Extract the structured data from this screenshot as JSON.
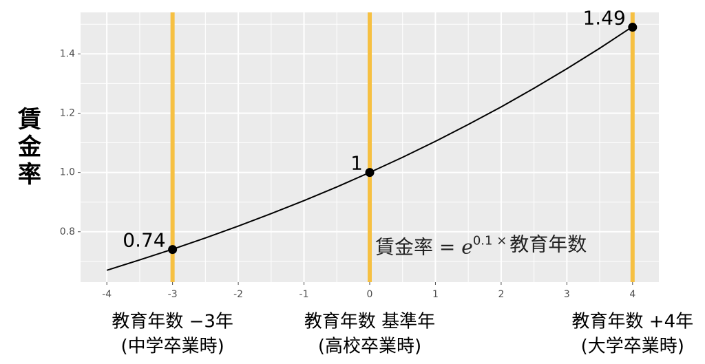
{
  "chart_data": {
    "type": "line",
    "y_label": "賃金率",
    "x": [
      -4,
      -3.5,
      -3,
      -2.5,
      -2,
      -1.5,
      -1,
      -0.5,
      0,
      0.5,
      1,
      1.5,
      2,
      2.5,
      3,
      3.5,
      4
    ],
    "series": [
      {
        "color": "#000000",
        "values": [
          0.67,
          0.705,
          0.741,
          0.779,
          0.819,
          0.861,
          0.905,
          0.951,
          1.0,
          1.051,
          1.105,
          1.162,
          1.221,
          1.284,
          1.35,
          1.419,
          1.492
        ]
      }
    ],
    "points": {
      "x": [
        -3,
        0,
        4
      ],
      "values": [
        0.74,
        1,
        1.49
      ],
      "color": "#000000"
    },
    "vlines": {
      "x": [
        -3,
        0,
        4
      ],
      "color": "#f6c042"
    },
    "xlim": [
      -4.4,
      4.4
    ],
    "ylim": [
      0.63,
      1.54
    ],
    "xticks": [
      -4,
      -3,
      -2,
      -1,
      0,
      1,
      2,
      3,
      4
    ],
    "yticks": [
      0.8,
      {
        "value": 1,
        "label": "1.0"
      },
      1.2,
      1.4
    ],
    "grid": true,
    "formula": {
      "x": 0,
      "y": 0.745,
      "parts": [
        "賃金率 = ",
        "e",
        "0.1 ×",
        "教育年数"
      ]
    },
    "x_annotations": [
      {
        "x": -3,
        "lines": [
          "教育年数 −3年",
          "(中学卒業時)"
        ]
      },
      {
        "x": 0,
        "lines": [
          "教育年数 基準年",
          "(高校卒業時)"
        ]
      },
      {
        "x": 4,
        "lines": [
          "教育年数 +4年",
          "(大学卒業時)"
        ]
      }
    ]
  }
}
